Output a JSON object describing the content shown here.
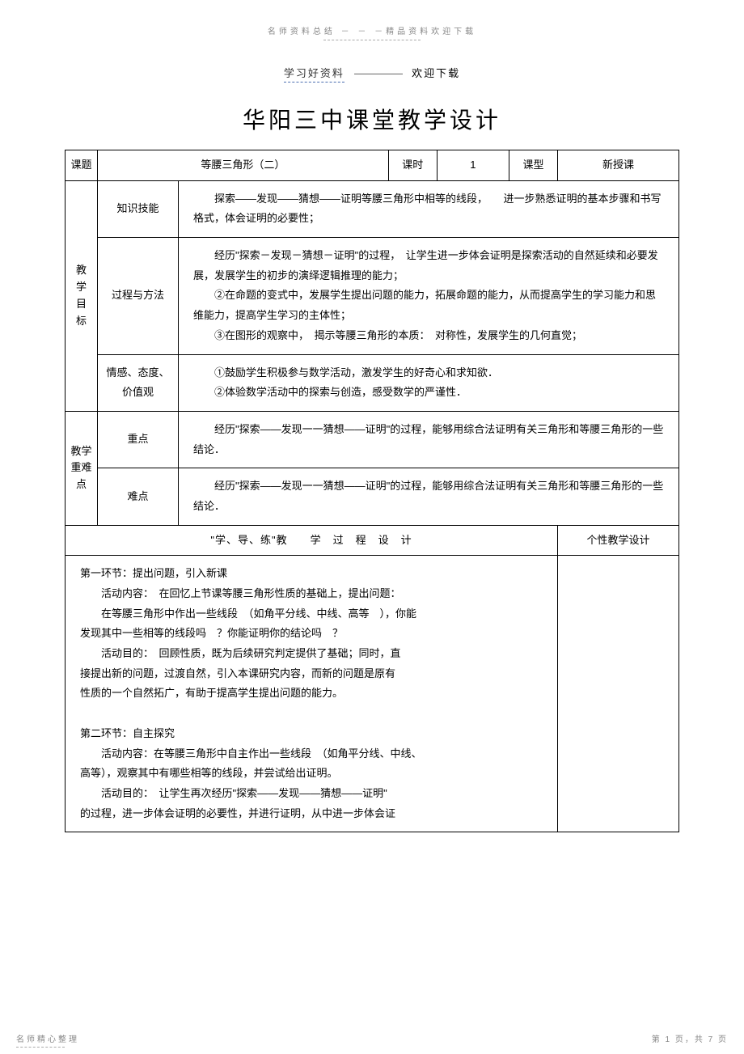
{
  "header": {
    "top_note": "名师资料总结 － － －精品资料欢迎下载",
    "sub_left": "学习好资料",
    "sub_right": "欢迎下载"
  },
  "title": "华阳三中课堂教学设计",
  "row1": {
    "topic_label": "课题",
    "topic_value": "等腰三角形（二）",
    "period_label": "课时",
    "period_value": "1",
    "type_label": "课型",
    "type_value": "新授课"
  },
  "objectives_label": "教学目标",
  "knowledge": {
    "label": "知识技能",
    "text": "　　探索——发现——猜想——证明等腰三角形中相等的线段，　　进一步熟悉证明的基本步骤和书写格式，体会证明的必要性；"
  },
  "process": {
    "label": "过程与方法",
    "text": "　　经历\"探索－发现－猜想－证明\"的过程，　让学生进一步体会证明是探索活动的自然延续和必要发展，发展学生的初步的演绎逻辑推理的能力；\n　　②在命题的变式中，发展学生提出问题的能力，拓展命题的能力，从而提高学生的学习能力和思维能力，提高学生学习的主体性；\n　　③在图形的观察中，　揭示等腰三角形的本质：　对称性，发展学生的几何直觉；"
  },
  "emotion": {
    "label": "情感、态度、价值观",
    "text": "　　①鼓励学生积极参与数学活动，激发学生的好奇心和求知欲．\n　　②体验数学活动中的探索与创造，感受数学的严谨性．"
  },
  "difficulty_label": "教学重难点",
  "focus": {
    "label": "重点",
    "text": "　　经历\"探索——发现一一猜想——证明\"的过程，能够用综合法证明有关三角形和等腰三角形的一些结论．"
  },
  "hard": {
    "label": "难点",
    "text": "　　经历\"探索——发现一一猜想——证明\"的过程，能够用综合法证明有关三角形和等腰三角形的一些结论．"
  },
  "process_header": "\"学、导、练\"教　　学　过　程　设　计",
  "personal_header": "个性教学设计",
  "body": {
    "p1": "第一环节：提出问题，引入新课",
    "p2": "活动内容：　在回忆上节课等腰三角形性质的基础上，提出问题：",
    "p3": "在等腰三角形中作出一些线段　（如角平分线、中线、高等　），你能",
    "p4": "发现其中一些相等的线段吗　？你能证明你的结论吗　？",
    "p5": "活动目的：　回顾性质，既为后续研究判定提供了基础；同时，直",
    "p6": "接提出新的问题，过渡自然，引入本课研究内容，而新的问题是原有",
    "p7": "性质的一个自然拓广，有助于提高学生提出问题的能力。",
    "p8": "第二环节：自主探究",
    "p9": "活动内容：在等腰三角形中自主作出一些线段　（如角平分线、中线、",
    "p10": "高等），观察其中有哪些相等的线段，并尝试给出证明。",
    "p11": "活动目的：　让学生再次经历\"探索——发现——猜想——证明\"",
    "p12": "的过程，进一步体会证明的必要性，并进行证明，从中进一步体会证"
  },
  "footer": {
    "left": "名师精心整理",
    "right": "第 1 页，共 7 页"
  }
}
